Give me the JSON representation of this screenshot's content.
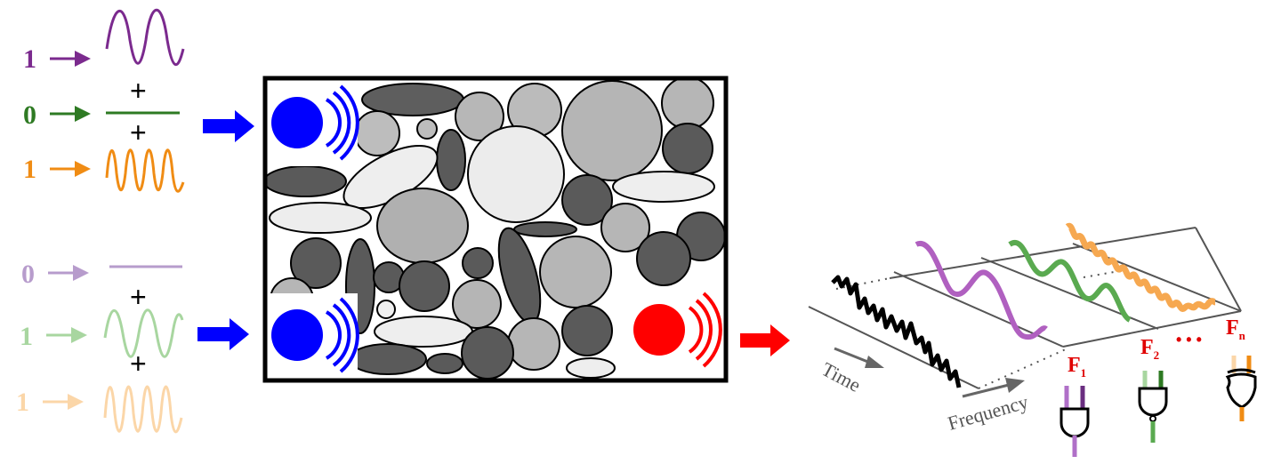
{
  "input_group_1": {
    "bits": [
      "1",
      "0",
      "1"
    ],
    "colors": [
      "#7b2a8e",
      "#2e7a23",
      "#f08c14"
    ],
    "plus": "+"
  },
  "input_group_2": {
    "bits": [
      "0",
      "1",
      "1"
    ],
    "colors": [
      "#b79ccc",
      "#a8d6a0",
      "#fbd6a8"
    ],
    "plus": "+"
  },
  "arrows": {
    "input_color": "#0000ff",
    "output_color": "#ff0000"
  },
  "medium": {
    "transmitter_color": "#0000ff",
    "receiver_color": "#ff0000"
  },
  "spectrogram": {
    "time_label": "Time",
    "frequency_label": "Frequency",
    "wave_colors": [
      "#b060c0",
      "#5aaa50",
      "#f6a850"
    ]
  },
  "gates": {
    "labels": [
      {
        "letter": "F",
        "sub": "1"
      },
      {
        "letter": "F",
        "sub": "2"
      },
      {
        "letter": "F",
        "sub": "n"
      }
    ],
    "ellipsis": "• • •",
    "label_color": "#e00000"
  }
}
